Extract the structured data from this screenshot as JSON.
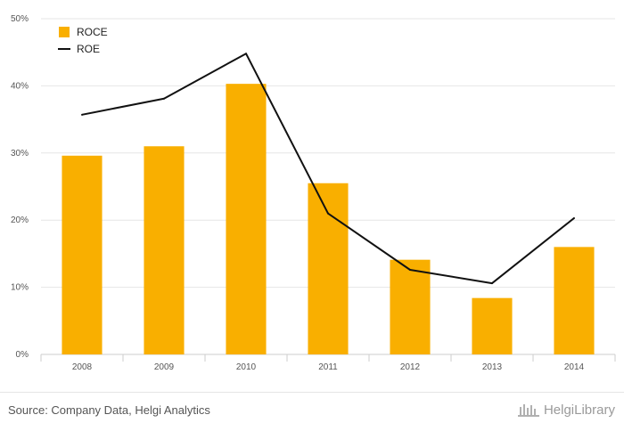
{
  "chart_data": {
    "type": "bar",
    "categories": [
      "2008",
      "2009",
      "2010",
      "2011",
      "2012",
      "2013",
      "2014"
    ],
    "series": [
      {
        "name": "ROCE",
        "type": "bar",
        "color": "#f9af00",
        "values": [
          29.6,
          31.0,
          40.3,
          25.5,
          14.1,
          8.4,
          16.0
        ]
      },
      {
        "name": "ROE",
        "type": "line",
        "color": "#111111",
        "values": [
          35.7,
          38.1,
          44.8,
          21.0,
          12.6,
          10.6,
          20.3
        ]
      }
    ],
    "ylim": [
      0,
      50
    ],
    "yticks": [
      "0%",
      "10%",
      "20%",
      "30%",
      "40%",
      "50%"
    ],
    "grid": true,
    "legend_position": "top-left"
  },
  "footer": {
    "source": "Source: Company Data, Helgi Analytics",
    "logo_text": "HelgiLibrary"
  }
}
